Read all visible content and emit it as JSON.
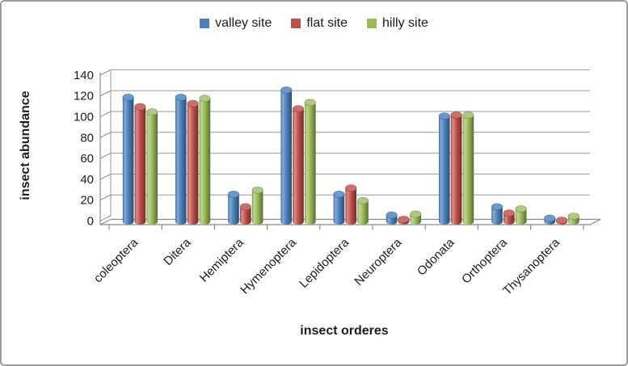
{
  "figure": {
    "border_color": "#9c9c9c",
    "background": "#ffffff"
  },
  "legend": {
    "position": "top",
    "items": [
      {
        "label": "valley site",
        "color": "#4F81BD"
      },
      {
        "label": "flat site",
        "color": "#C0504D"
      },
      {
        "label": "hilly site",
        "color": "#9BBB59"
      }
    ]
  },
  "style": {
    "grid_color": "#999999",
    "axis_color": "#8a8a8a",
    "text_color": "#1c1c1c",
    "floor_fill": "#ffffff"
  },
  "chart_data": {
    "type": "bar",
    "style_3d": "cylinder",
    "title": "",
    "xlabel": "insect orderes",
    "ylabel": "insect abundance",
    "ylim": [
      0,
      140
    ],
    "ytick_step": 20,
    "grid": true,
    "legend_position": "top",
    "categories": [
      "coleoptera",
      "Ditera",
      "Hemiptera",
      "Hymenoptera",
      "Lepidoptera",
      "Neuroptera",
      "Odonata",
      "Orthoptera",
      "Thysanoptera"
    ],
    "series": [
      {
        "name": "valley site",
        "values": [
          119,
          119,
          26,
          126,
          26,
          6,
          101,
          14,
          3
        ],
        "colors": {
          "base": "#4F81BD",
          "light": "#82ABD9",
          "mid": "#3E6896",
          "dark": "#2A5173",
          "cap": "#6C98CB"
        }
      },
      {
        "name": "flat site",
        "values": [
          110,
          113,
          14,
          108,
          32,
          2,
          102,
          8,
          1
        ],
        "colors": {
          "base": "#C0504D",
          "light": "#D98F8D",
          "mid": "#9C3F3C",
          "dark": "#762B29",
          "cap": "#CC6E6B"
        }
      },
      {
        "name": "hilly site",
        "values": [
          105,
          118,
          30,
          114,
          20,
          7,
          102,
          12,
          5
        ],
        "colors": {
          "base": "#9BBB59",
          "light": "#C3D69C",
          "mid": "#7C9A45",
          "dark": "#596F31",
          "cap": "#AEC981"
        }
      }
    ]
  }
}
